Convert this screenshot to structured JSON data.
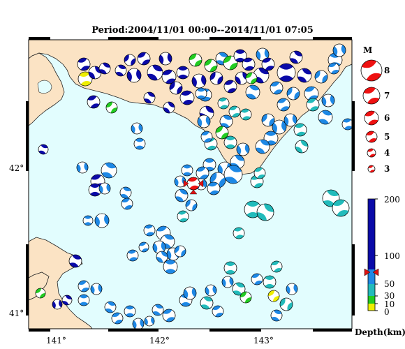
{
  "title": "Period:2004/11/01 00:00--2014/11/01 07:05",
  "map": {
    "x_ticks": [
      "141°",
      "142°",
      "143°"
    ],
    "y_ticks": [
      "42°",
      "41°"
    ],
    "lon_range": [
      140.8,
      143.8
    ],
    "lat_range": [
      40.85,
      42.85
    ]
  },
  "magnitude_legend": {
    "heading": "M",
    "levels": [
      "8",
      "7",
      "6",
      "5",
      "4",
      "3"
    ]
  },
  "depth_legend": {
    "label": "Depth(km)",
    "ticks": [
      "200",
      "100",
      "50",
      "30",
      "10",
      "0"
    ],
    "colors": {
      "shallow": "#22cc22",
      "very_shallow": "#eeee00",
      "mid": "#22bbbb",
      "deep": "#1e88e5",
      "very_deep": "#0a0aa8"
    }
  },
  "main_event": {
    "lon": 142.33,
    "lat": 41.93,
    "color": "#ee1111",
    "depth_marker": "red-bowtie"
  },
  "colors": {
    "land": "#fbe3c4",
    "sea": "#e2fdfe",
    "compression": "#1e88e5"
  }
}
